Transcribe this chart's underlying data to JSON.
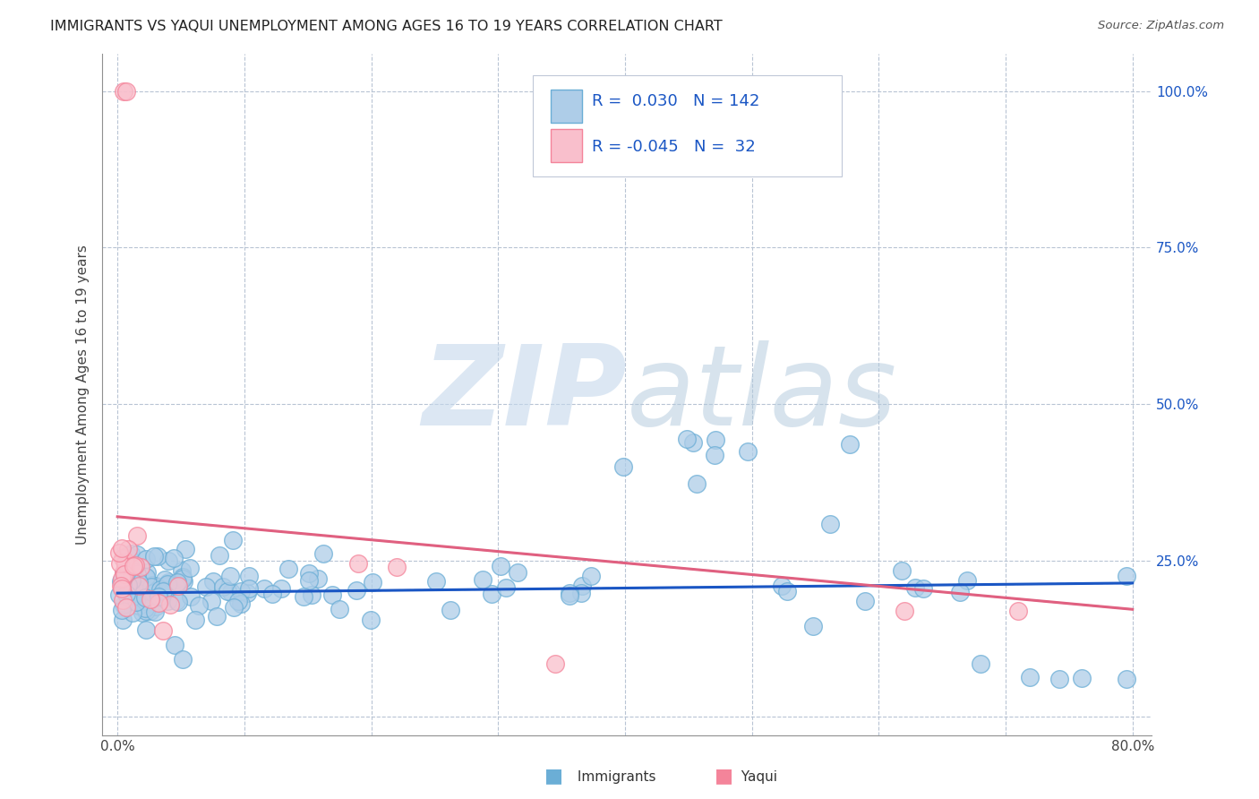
{
  "title": "IMMIGRANTS VS YAQUI UNEMPLOYMENT AMONG AGES 16 TO 19 YEARS CORRELATION CHART",
  "source": "Source: ZipAtlas.com",
  "ylabel": "Unemployment Among Ages 16 to 19 years",
  "immigrants_color": "#6baed6",
  "immigrants_fill": "#aecde8",
  "yaqui_color": "#f4849a",
  "yaqui_fill": "#f9bfcc",
  "trend_blue": "#1a56c4",
  "trend_pink": "#e06080",
  "trend_dashed_blue": "#aabbd4",
  "trend_dashed_pink": "#e8aabb",
  "watermark_zip": "#c8d4e8",
  "watermark_atlas": "#b8c8d8",
  "background": "#ffffff",
  "grid_color": "#b8c4d4",
  "legend_text_color": "#1a56c4",
  "legend_r_color": "#333333",
  "bottom_legend_imm_color": "#6baed6",
  "bottom_legend_yaq_color": "#f4849a"
}
